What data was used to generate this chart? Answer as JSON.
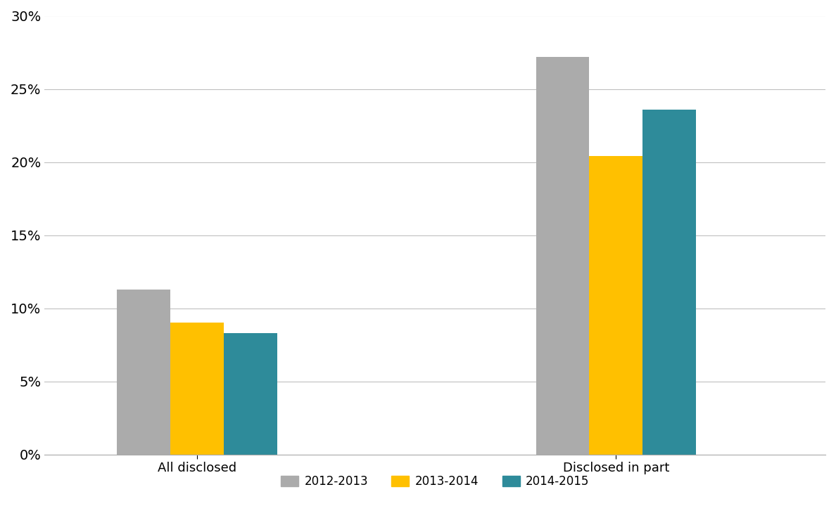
{
  "categories": [
    "All disclosed",
    "Disclosed in part"
  ],
  "series": [
    {
      "label": "2012-2013",
      "values": [
        0.113,
        0.272
      ],
      "color": "#ABABAB"
    },
    {
      "label": "2013-2014",
      "values": [
        0.09,
        0.204
      ],
      "color": "#FFC000"
    },
    {
      "label": "2014-2015",
      "values": [
        0.083,
        0.236
      ],
      "color": "#2E8B9A"
    }
  ],
  "ylim": [
    0,
    0.3
  ],
  "yticks": [
    0.0,
    0.05,
    0.1,
    0.15,
    0.2,
    0.25,
    0.3
  ],
  "background_color": "#FFFFFF",
  "grid_color": "#C0C0C0",
  "bar_width": 0.28,
  "group_centers": [
    1.0,
    3.2
  ],
  "xlim": [
    0.2,
    4.3
  ],
  "legend_ncol": 3,
  "tick_fontsize": 14,
  "label_fontsize": 13,
  "legend_fontsize": 12
}
